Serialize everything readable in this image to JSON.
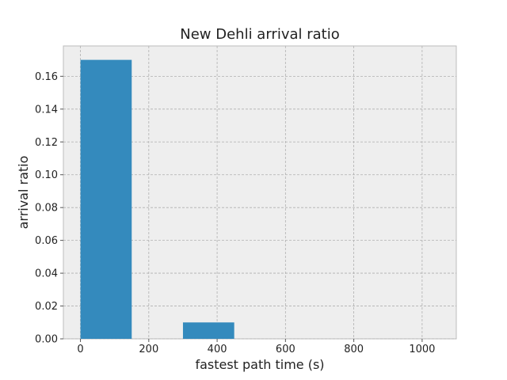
{
  "chart_data": {
    "type": "bar",
    "title": "New Dehli arrival ratio",
    "xlabel": "fastest path time (s)",
    "ylabel": "arrival ratio",
    "bars": [
      {
        "x_start": 0,
        "x_end": 150,
        "value": 0.17
      },
      {
        "x_start": 300,
        "x_end": 450,
        "value": 0.01
      }
    ],
    "xlim": [
      -50,
      1100
    ],
    "ylim": [
      0,
      0.1785
    ],
    "xticks": [
      0,
      200,
      400,
      600,
      800,
      1000
    ],
    "xtick_labels": [
      "0",
      "200",
      "400",
      "600",
      "800",
      "1000"
    ],
    "yticks": [
      0.0,
      0.02,
      0.04,
      0.06,
      0.08,
      0.1,
      0.12,
      0.14,
      0.16
    ],
    "ytick_labels": [
      "0.00",
      "0.02",
      "0.04",
      "0.06",
      "0.08",
      "0.10",
      "0.12",
      "0.14",
      "0.16"
    ],
    "grid": true,
    "colors": {
      "bar": "#348abd",
      "background": "#eeeeee"
    }
  }
}
